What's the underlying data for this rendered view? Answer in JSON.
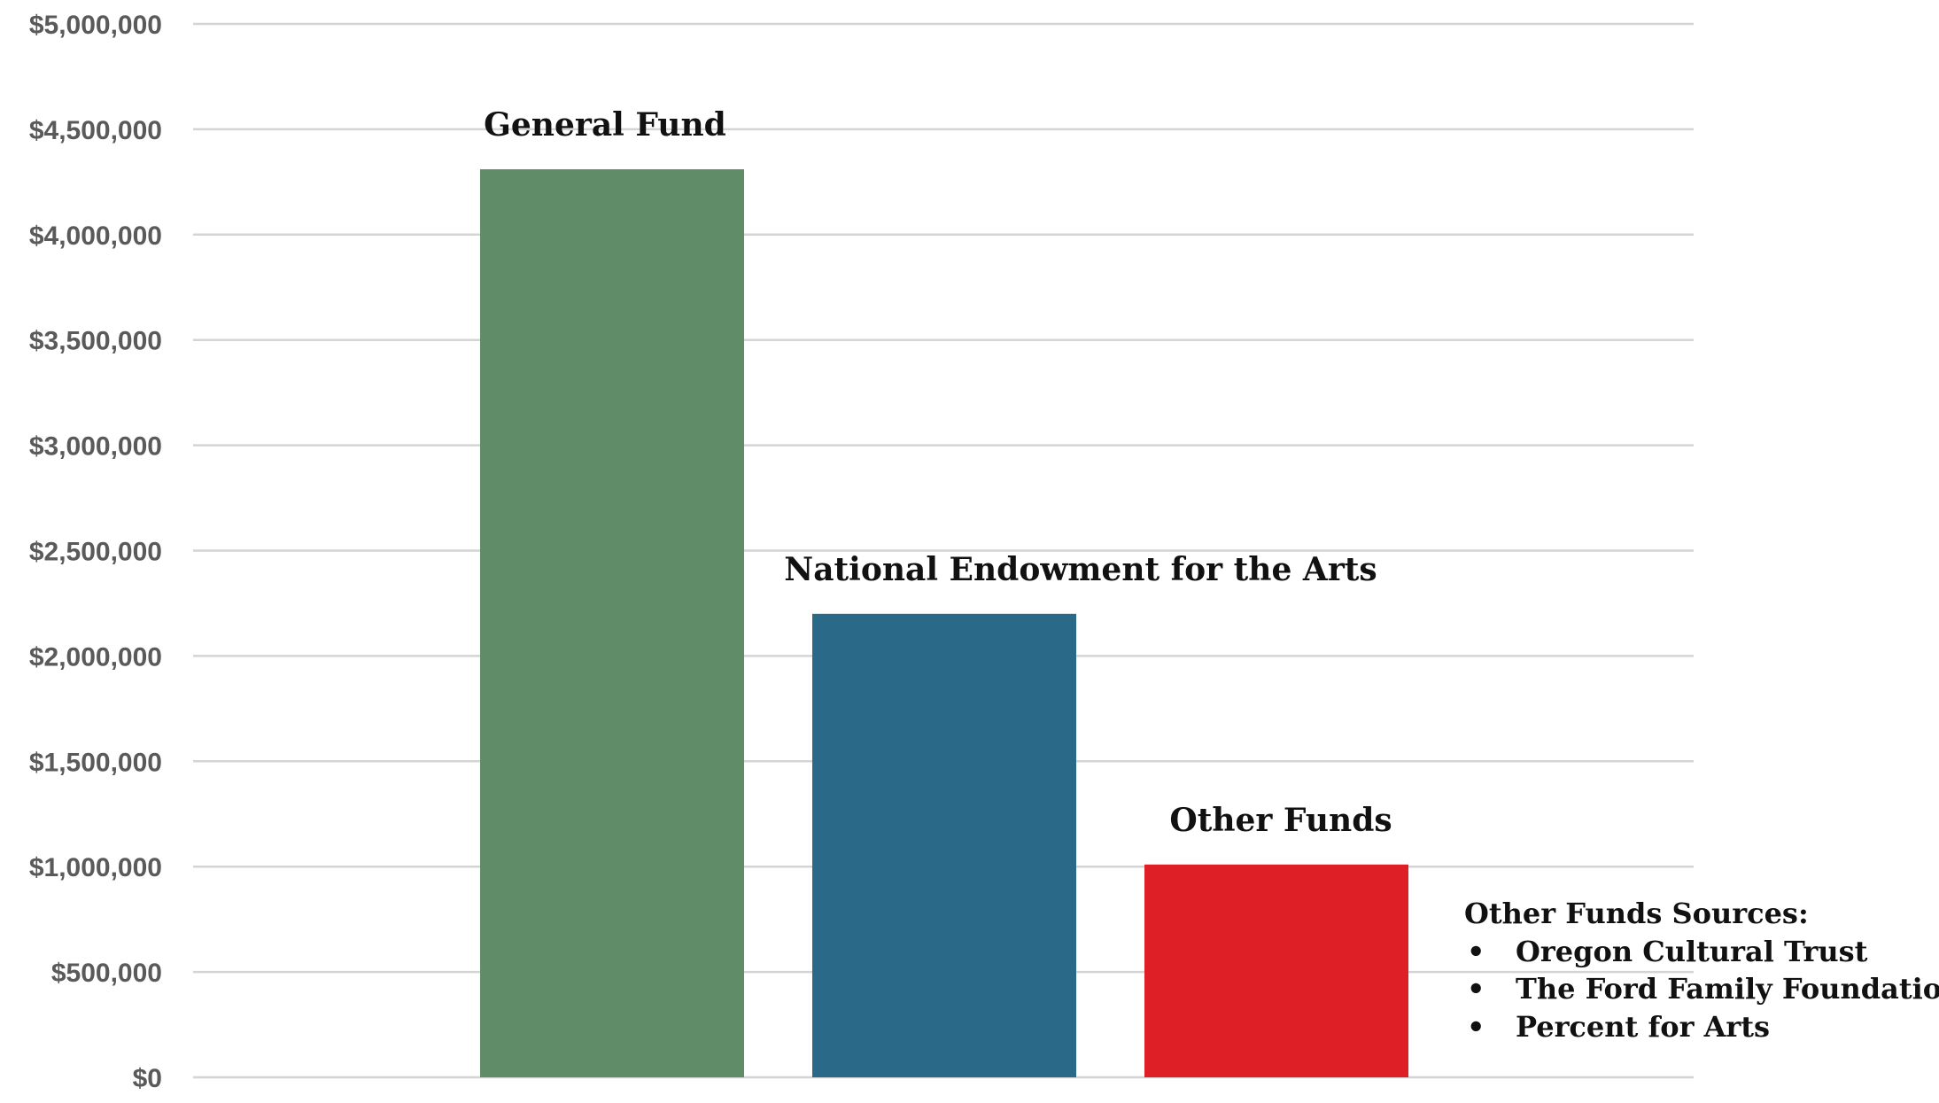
{
  "chart_data": {
    "type": "bar",
    "categories": [
      "General Fund",
      "National Endowment for the Arts",
      "Other Funds"
    ],
    "values": [
      4310000,
      2200000,
      1010000
    ],
    "colors": [
      "#608c67",
      "#2a6988",
      "#de1f26"
    ],
    "ylim": [
      0,
      5000000
    ],
    "yticks": [
      0,
      500000,
      1000000,
      1500000,
      2000000,
      2500000,
      3000000,
      3500000,
      4000000,
      4500000,
      5000000
    ],
    "ytick_labels": [
      "$0",
      "$500,000",
      "$1,000,000",
      "$1,500,000",
      "$2,000,000",
      "$2,500,000",
      "$3,000,000",
      "$3,500,000",
      "$4,000,000",
      "$4,500,000",
      "$5,000,000"
    ],
    "grid": true,
    "title": "",
    "xlabel": "",
    "ylabel": "",
    "annotation": {
      "heading": "Other Funds Sources:",
      "bullet": "•",
      "items": [
        "Oregon Cultural Trust",
        "The Ford Family Foundation",
        "Percent for Arts"
      ]
    },
    "colors_meta": {
      "gridline": "#d4d4d4",
      "tick_text": "#5a5a5a",
      "label_text": "#111111"
    }
  }
}
